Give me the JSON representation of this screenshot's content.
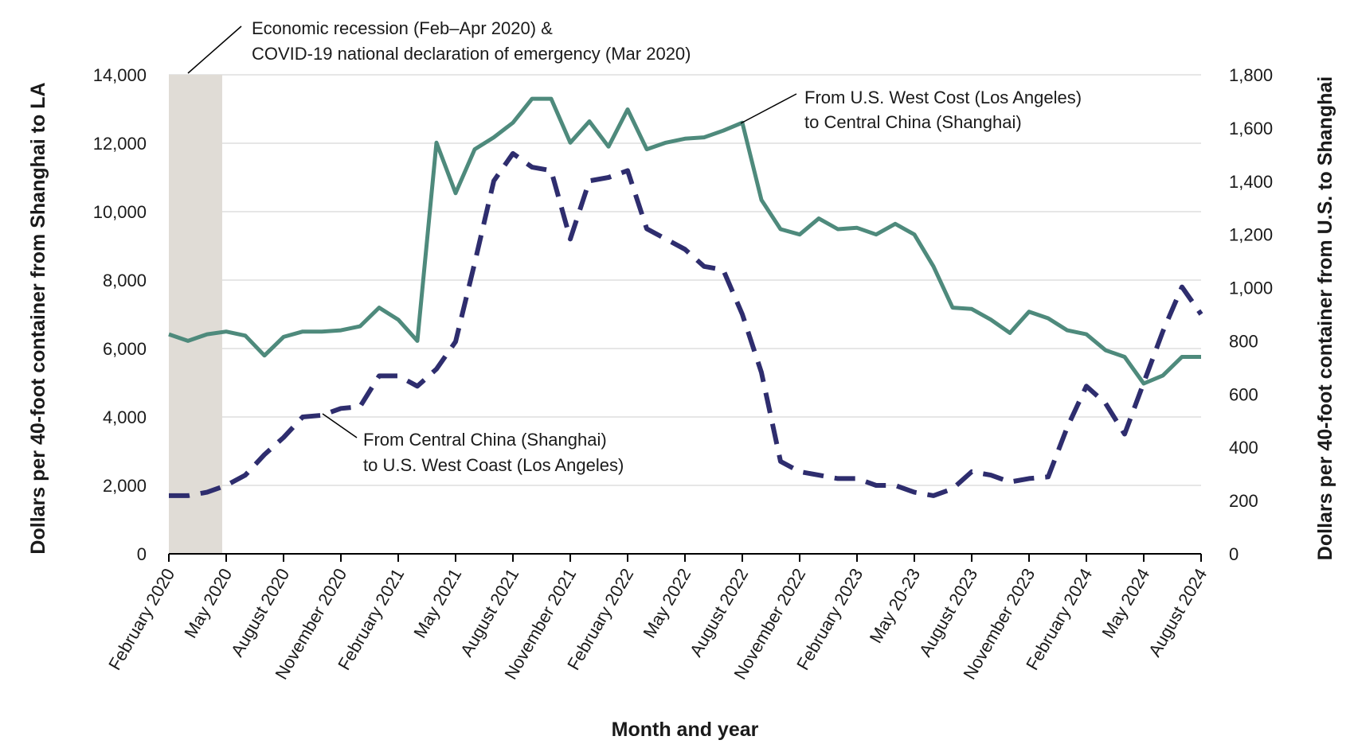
{
  "chart_data": {
    "type": "line",
    "xlabel": "Month and year",
    "ylabel_left": "Dollars per 40-foot container from Shanghai to LA",
    "ylabel_right": "Dollars per 40-foot container from U.S. to Shanghai",
    "ylim_left": [
      0,
      14000
    ],
    "ylim_right": [
      0,
      1800
    ],
    "yticks_left": [
      "0",
      "2,000",
      "4,000",
      "6,000",
      "8,000",
      "10,000",
      "12,000",
      "14,000"
    ],
    "yticks_right": [
      "0",
      "200",
      "400",
      "600",
      "800",
      "1,000",
      "1,200",
      "1,400",
      "1,600",
      "1,800"
    ],
    "x_tick_labels": [
      "February 2020",
      "May 2020",
      "August 2020",
      "November 2020",
      "February 2021",
      "May 2021",
      "August 2021",
      "November 2021",
      "February 2022",
      "May 2022",
      "August 2022",
      "November 2022",
      "February 2023",
      "May 20-23",
      "August 2023",
      "November 2023",
      "February 2024",
      "May 2024",
      "August 2024"
    ],
    "grid": true,
    "shaded_region": {
      "start": "February 2020",
      "end": "April 2020",
      "label_line1": "Economic recession (Feb–Apr 2020) &",
      "label_line2": "COVID-19 national declaration of emergency (Mar 2020)",
      "color": "#e0dcd6"
    },
    "series": [
      {
        "axis": "left",
        "style": "dashed",
        "color": "#2e2d6e",
        "label_line1": "From Central China (Shanghai)",
        "label_line2": "to U.S. West Coast (Los Angeles)",
        "values": [
          1700,
          1700,
          1800,
          2000,
          2300,
          2900,
          3400,
          4000,
          4050,
          4250,
          4300,
          5200,
          5200,
          4900,
          5400,
          6200,
          8500,
          10900,
          11700,
          11300,
          11200,
          9200,
          10900,
          11000,
          11200,
          9500,
          9200,
          8900,
          8400,
          8300,
          7000,
          5300,
          2700,
          2400,
          2300,
          2200,
          2200,
          2000,
          2000,
          1800,
          1700,
          1900,
          2400,
          2300,
          2100,
          2200,
          2250,
          3700,
          4900,
          4400,
          3500,
          5000,
          6500,
          7800,
          7000
        ]
      },
      {
        "axis": "right",
        "style": "solid",
        "color": "#4e8a7c",
        "label_line1": "From U.S. West Cost (Los Angeles)",
        "label_line2": "to Central China (Shanghai)",
        "values": [
          825,
          800,
          825,
          835,
          820,
          745,
          815,
          835,
          835,
          840,
          855,
          925,
          880,
          800,
          1545,
          1355,
          1520,
          1565,
          1620,
          1710,
          1710,
          1545,
          1625,
          1530,
          1670,
          1520,
          1545,
          1560,
          1565,
          1590,
          1620,
          1330,
          1220,
          1200,
          1260,
          1220,
          1225,
          1200,
          1240,
          1200,
          1080,
          925,
          920,
          880,
          830,
          910,
          885,
          840,
          825,
          765,
          740,
          640,
          670,
          740,
          740
        ]
      }
    ]
  }
}
